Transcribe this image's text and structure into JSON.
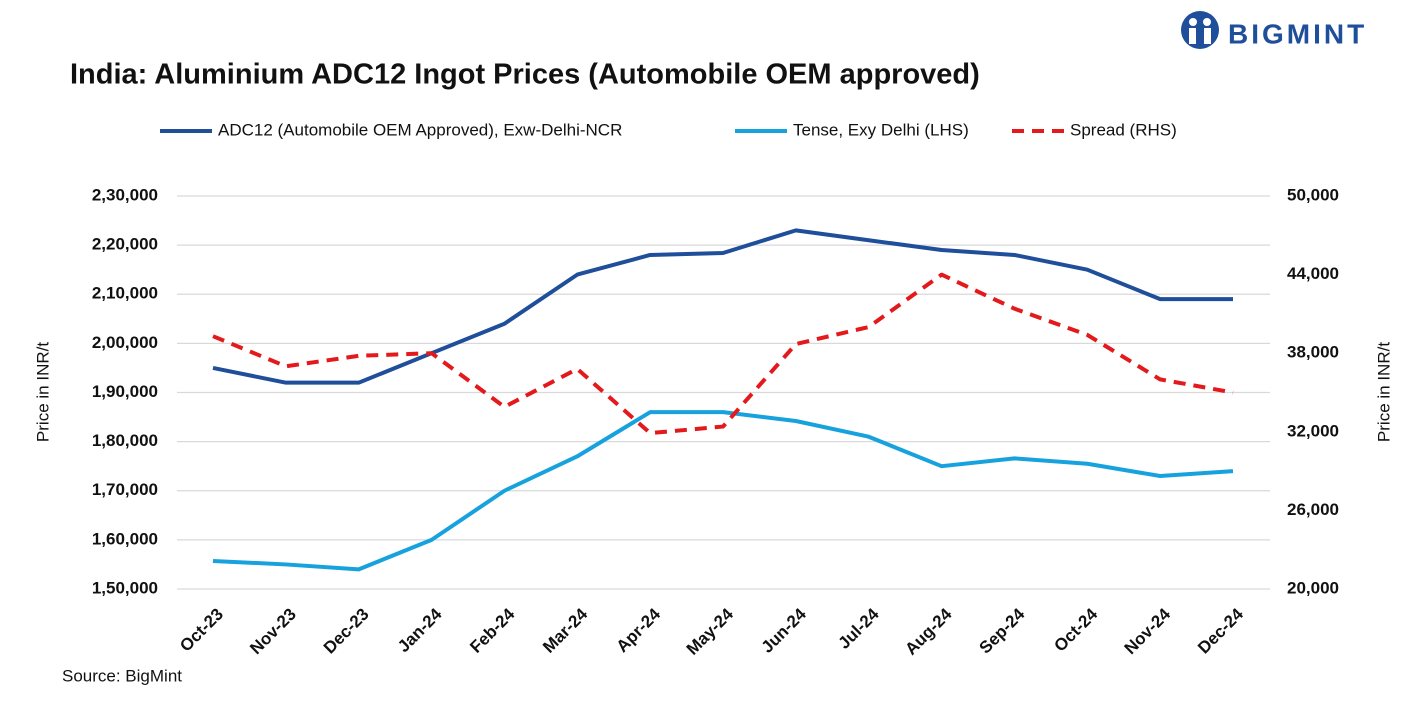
{
  "chart_data": {
    "type": "line",
    "title": "India: Aluminium ADC12 Ingot Prices (Automobile OEM approved)",
    "logo": "BIGMINT",
    "source": "Source: BigMint",
    "y_label": "Price in INR/t",
    "y2_label": "Price in INR/t",
    "categories": [
      "Oct-23",
      "Nov-23",
      "Dec-23",
      "Jan-24",
      "Feb-24",
      "Mar-24",
      "Apr-24",
      "May-24",
      "Jun-24",
      "Jul-24",
      "Aug-24",
      "Sep-24",
      "Oct-24",
      "Nov-24",
      "Dec-24"
    ],
    "series": [
      {
        "name": "ADC12 (Automobile OEM Approved), Exw-Delhi-NCR",
        "color": "#1f4e9b",
        "dashed": false,
        "values": [
          195000,
          192000,
          192000,
          198000,
          204000,
          214000,
          218000,
          218400,
          223000,
          221000,
          219000,
          218000,
          215000,
          209000,
          209000
        ]
      },
      {
        "name": "Tense, Exy Delhi (LHS)",
        "color": "#17a2de",
        "dashed": false,
        "values": [
          155700,
          155000,
          154000,
          160000,
          170000,
          177000,
          186000,
          186000,
          184200,
          181000,
          175000,
          176600,
          175500,
          173000,
          174000
        ]
      },
      {
        "name": "Spread (RHS)",
        "color": "#e3191c",
        "dashed": true,
        "axis": "y2",
        "values": [
          39300,
          37000,
          37800,
          38000,
          33900,
          36800,
          31900,
          32400,
          38700,
          40000,
          44000,
          41400,
          39400,
          36000,
          35000
        ]
      }
    ],
    "ylim": [
      150000,
      230000
    ],
    "yticks": [
      {
        "value": 150000,
        "label": "1,50,000"
      },
      {
        "value": 160000,
        "label": "1,60,000"
      },
      {
        "value": 170000,
        "label": "1,70,000"
      },
      {
        "value": 180000,
        "label": "1,80,000"
      },
      {
        "value": 190000,
        "label": "1,90,000"
      },
      {
        "value": 200000,
        "label": "2,00,000"
      },
      {
        "value": 210000,
        "label": "2,10,000"
      },
      {
        "value": 220000,
        "label": "2,20,000"
      },
      {
        "value": 230000,
        "label": "2,30,000"
      }
    ],
    "y2lim": [
      20000,
      50000
    ],
    "y2ticks": [
      {
        "value": 20000,
        "label": "20,000"
      },
      {
        "value": 26000,
        "label": "26,000"
      },
      {
        "value": 32000,
        "label": "32,000"
      },
      {
        "value": 38000,
        "label": "38,000"
      },
      {
        "value": 44000,
        "label": "44,000"
      },
      {
        "value": 50000,
        "label": "50,000"
      }
    ],
    "grid": true
  }
}
